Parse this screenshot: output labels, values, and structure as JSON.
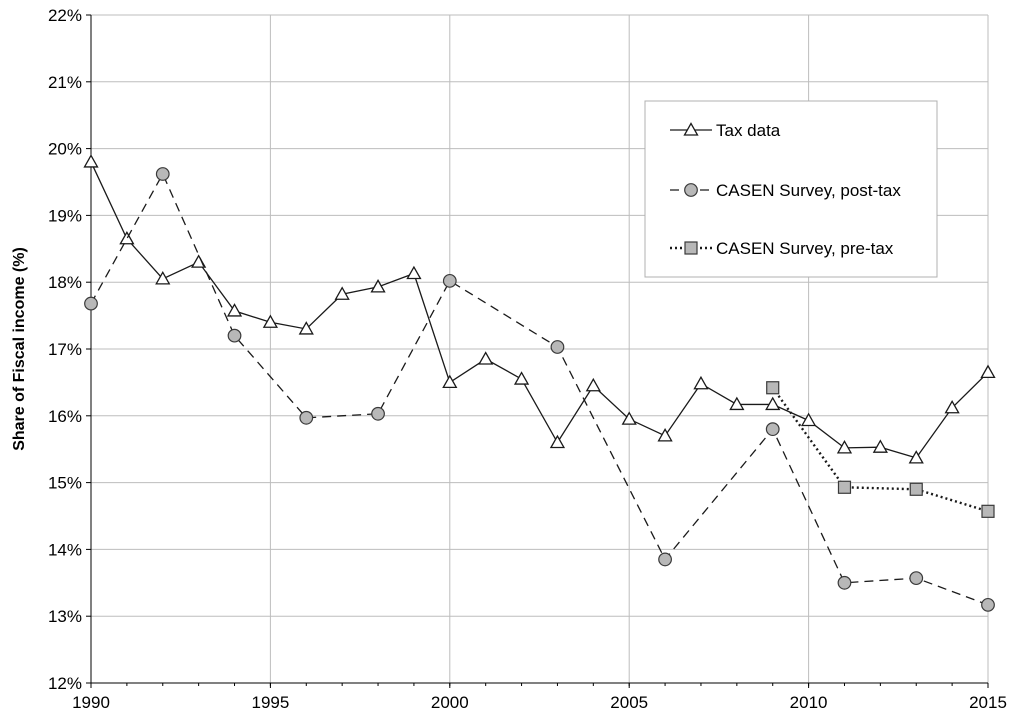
{
  "chart_data": {
    "type": "line",
    "title": "",
    "xlabel": "",
    "ylabel": "Share of Fiscal income (%)",
    "xlim": [
      1990,
      2015
    ],
    "ylim": [
      12,
      22
    ],
    "x_ticks": [
      "1990",
      "1995",
      "2000",
      "2005",
      "2010",
      "2015"
    ],
    "y_ticks": [
      "12%",
      "13%",
      "14%",
      "15%",
      "16%",
      "17%",
      "18%",
      "19%",
      "20%",
      "21%",
      "22%"
    ],
    "grid": true,
    "legend_position": "top-right",
    "series": [
      {
        "name": "Tax data",
        "marker": "triangle",
        "line": "solid",
        "x": [
          1990,
          1991,
          1992,
          1993,
          1994,
          1995,
          1996,
          1997,
          1998,
          1999,
          2000,
          2001,
          2002,
          2003,
          2004,
          2005,
          2006,
          2007,
          2008,
          2009,
          2010,
          2011,
          2012,
          2013,
          2014,
          2015
        ],
        "y": [
          19.8,
          18.65,
          18.05,
          18.3,
          17.57,
          17.4,
          17.3,
          17.82,
          17.93,
          18.13,
          16.5,
          16.85,
          16.55,
          15.6,
          16.45,
          15.95,
          15.7,
          16.48,
          16.17,
          16.17,
          15.93,
          15.52,
          15.53,
          15.37,
          16.12,
          16.65
        ]
      },
      {
        "name": "CASEN Survey, post-tax",
        "marker": "circle",
        "line": "dashed",
        "x": [
          1990,
          1992,
          1994,
          1996,
          1998,
          2000,
          2003,
          2006,
          2009,
          2011,
          2013,
          2015
        ],
        "y": [
          17.68,
          19.62,
          17.2,
          15.97,
          16.03,
          18.02,
          17.03,
          13.85,
          15.8,
          13.5,
          13.57,
          13.17
        ]
      },
      {
        "name": "CASEN Survey, pre-tax",
        "marker": "square",
        "line": "dotted",
        "x": [
          2009,
          2011,
          2013,
          2015
        ],
        "y": [
          16.42,
          14.93,
          14.9,
          14.57
        ]
      }
    ]
  }
}
